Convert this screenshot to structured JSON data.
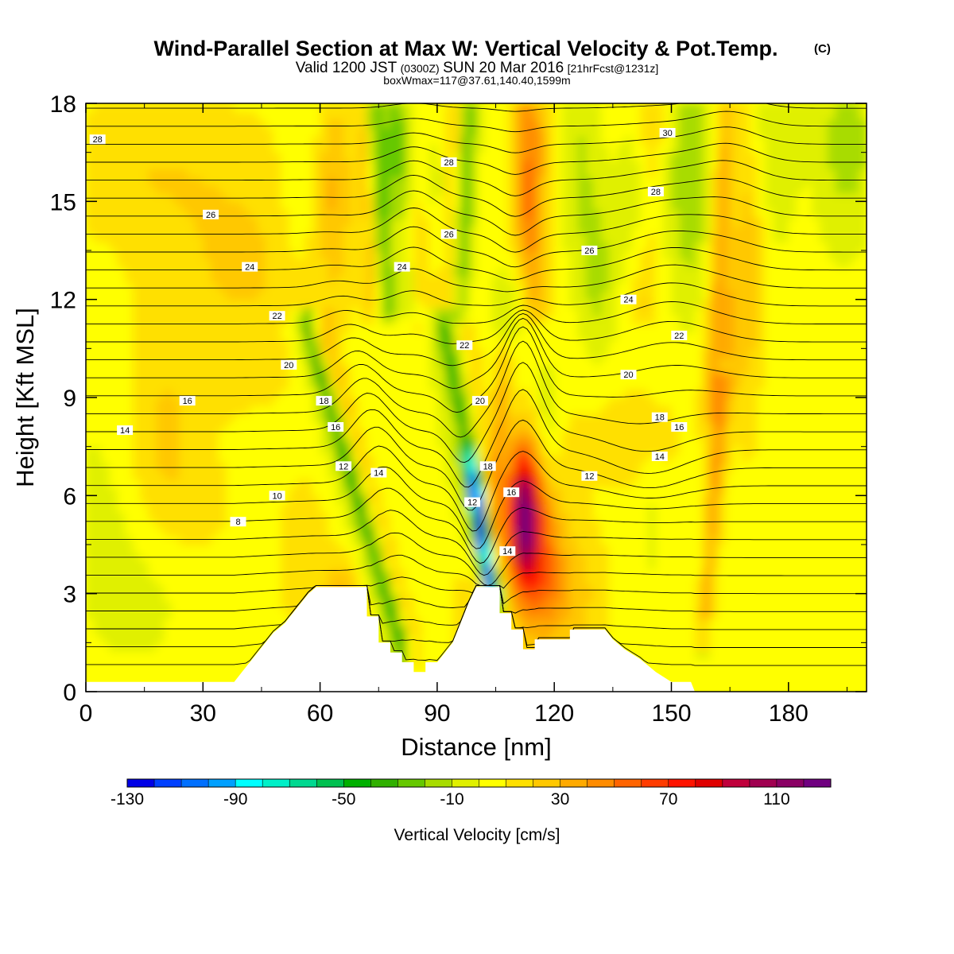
{
  "chart_data": {
    "type": "contour",
    "title": "Wind-Parallel Section at Max W: Vertical Velocity & Pot.Temp.",
    "title_mark": "(C)",
    "subtitle": {
      "valid": "Valid 1200 JST",
      "utc": "(0300Z)",
      "date": "SUN 20 Mar 2016",
      "fcst": "[21hrFcst@1231z]"
    },
    "info_line": "boxWmax=117@37.61,140.40,1599m",
    "xlabel": "Distance [nm]",
    "ylabel": "Height [Kft MSL]",
    "xlim": [
      0,
      200
    ],
    "ylim": [
      0,
      18
    ],
    "x_ticks": [
      0,
      30,
      60,
      90,
      120,
      150,
      180
    ],
    "y_ticks": [
      0,
      3,
      6,
      9,
      12,
      15,
      18
    ],
    "colorbar": {
      "title": "Vertical Velocity [cm/s]",
      "range": [
        -130,
        130
      ],
      "step": 10,
      "labels": [
        -130,
        -90,
        -50,
        -10,
        30,
        70,
        110
      ],
      "colors": [
        "#0000e6",
        "#0040ff",
        "#0070ff",
        "#00a0ff",
        "#00ffff",
        "#00f0c8",
        "#00d890",
        "#00c050",
        "#00b000",
        "#30b000",
        "#66c800",
        "#a8dc00",
        "#e0f000",
        "#ffff00",
        "#ffe000",
        "#ffc800",
        "#ffaa00",
        "#ff8c00",
        "#ff6400",
        "#ff3c00",
        "#ff1400",
        "#e00000",
        "#c0003c",
        "#a00050",
        "#8a0064",
        "#700080"
      ]
    },
    "terrain": [
      [
        0,
        0.3
      ],
      [
        38,
        0.3
      ],
      [
        40,
        0.6
      ],
      [
        42,
        0.9
      ],
      [
        44,
        1.2
      ],
      [
        46,
        1.5
      ],
      [
        48,
        1.8
      ],
      [
        51,
        2.1
      ],
      [
        53,
        2.4
      ],
      [
        55,
        2.7
      ],
      [
        57,
        3.0
      ],
      [
        59,
        3.2
      ],
      [
        72,
        3.2
      ],
      [
        72,
        2.3
      ],
      [
        75,
        2.3
      ],
      [
        75,
        1.5
      ],
      [
        78,
        1.5
      ],
      [
        78,
        1.2
      ],
      [
        81,
        1.2
      ],
      [
        81,
        0.9
      ],
      [
        84,
        0.9
      ],
      [
        84,
        0.6
      ],
      [
        87,
        0.6
      ],
      [
        87,
        0.9
      ],
      [
        90,
        0.9
      ],
      [
        92,
        1.2
      ],
      [
        94,
        1.5
      ],
      [
        96,
        2.1
      ],
      [
        98,
        2.7
      ],
      [
        100,
        3.2
      ],
      [
        106,
        3.2
      ],
      [
        106,
        2.4
      ],
      [
        109,
        2.4
      ],
      [
        109,
        1.9
      ],
      [
        112,
        1.9
      ],
      [
        112,
        1.3
      ],
      [
        115,
        1.3
      ],
      [
        115,
        1.6
      ],
      [
        124,
        1.6
      ],
      [
        124,
        1.9
      ],
      [
        133,
        1.9
      ],
      [
        135,
        1.6
      ],
      [
        138,
        1.3
      ],
      [
        142,
        1.0
      ],
      [
        146,
        0.6
      ],
      [
        150,
        0.3
      ],
      [
        155,
        0.3
      ],
      [
        156,
        0.0
      ]
    ],
    "w_field": [
      {
        "x": 0,
        "y": 9,
        "rx": 1000,
        "ry": 1000,
        "v": 5
      },
      {
        "x": 14,
        "y": 3,
        "rx": 14,
        "ry": 2.5,
        "v": -8
      },
      {
        "x": 4,
        "y": 6,
        "rx": 10,
        "ry": 3.5,
        "v": -7
      },
      {
        "x": 20,
        "y": 7.5,
        "rx": 10,
        "ry": 3,
        "v": 16
      },
      {
        "x": 40,
        "y": 13,
        "rx": 25,
        "ry": 4,
        "v": 16
      },
      {
        "x": 10,
        "y": 16,
        "rx": 25,
        "ry": 2,
        "v": 12
      },
      {
        "x": 30,
        "y": 5.5,
        "rx": 10,
        "ry": 1.5,
        "v": 6
      },
      {
        "x": 56,
        "y": 4,
        "rx": 7,
        "ry": 2.5,
        "v": 12
      },
      {
        "x": 66,
        "y": 2.6,
        "rx": 5,
        "ry": 1.4,
        "v": 28
      },
      {
        "x": 100,
        "y": 2.5,
        "rx": 6,
        "ry": 1.5,
        "v": 20
      },
      {
        "x": 138,
        "y": 7.8,
        "rx": 18,
        "ry": 1.8,
        "v": 10
      },
      {
        "x": 185,
        "y": 9.5,
        "rx": 15,
        "ry": 3,
        "v": -4
      },
      {
        "x": 188,
        "y": 2.6,
        "rx": 10,
        "ry": 2.5,
        "v": -4
      },
      {
        "x": 195,
        "y": 16.8,
        "rx": 8,
        "ry": 3,
        "v": -20
      },
      {
        "x": 176,
        "y": 16.8,
        "rx": 6,
        "ry": 3,
        "v": -15
      },
      {
        "x": 155,
        "y": 15.8,
        "rx": 6,
        "ry": 4,
        "v": -25
      },
      {
        "x": 142,
        "y": 15,
        "rx": 5,
        "ry": 2.5,
        "v": -20
      },
      {
        "x": 131,
        "y": 12.8,
        "rx": 5,
        "ry": 2.8,
        "v": -18
      },
      {
        "x": 126,
        "y": 16.5,
        "rx": 5,
        "ry": 3,
        "v": -15
      },
      {
        "x": 116,
        "y": 17,
        "rx": 5,
        "ry": 2,
        "v": 22
      },
      {
        "x": 113,
        "y": 14.5,
        "rx": 4,
        "ry": 1.6,
        "v": 18
      },
      {
        "x": 108,
        "y": 11.8,
        "rx": 5,
        "ry": 1.6,
        "v": -10
      },
      {
        "x": 90,
        "y": 15,
        "rx": 4,
        "ry": 2.5,
        "v": -12
      },
      {
        "x": 86,
        "y": 13,
        "rx": 4,
        "ry": 3,
        "v": 15
      },
      {
        "x": 64,
        "y": 15.5,
        "rx": 4,
        "ry": 3,
        "v": 22
      },
      {
        "x": 54,
        "y": 15.5,
        "rx": 4,
        "ry": 3,
        "v": -12
      },
      {
        "x": 80,
        "y": 17,
        "rx": 3,
        "ry": 2,
        "v": -20
      },
      {
        "x": 170,
        "y": 13,
        "rx": 4,
        "ry": 5,
        "v": 22
      },
      {
        "x": 165,
        "y": 11,
        "rx": 3,
        "ry": 2,
        "v": 20
      },
      {
        "x": 158,
        "y": 4,
        "rx": 4,
        "ry": 3,
        "v": -15
      },
      {
        "x": 145,
        "y": 5,
        "rx": 3,
        "ry": 2,
        "v": -8
      },
      {
        "x": 118,
        "y": 8,
        "rx": 3,
        "ry": 2,
        "v": -18
      },
      {
        "x": 112,
        "y": 5.3,
        "rx": 3.5,
        "ry": 1.8,
        "v": 75
      },
      {
        "x": 115,
        "y": 4.4,
        "rx": 6,
        "ry": 2.5,
        "v": 45
      },
      {
        "x": 122,
        "y": 3.0,
        "rx": 10,
        "ry": 2.2,
        "v": 25
      },
      {
        "x": 112,
        "y": 6.5,
        "rx": 6,
        "ry": 2,
        "v": 25
      }
    ],
    "w_bands": [
      {
        "x0": 57,
        "x1": 81,
        "y0": 11,
        "y1": 1.5,
        "w": 2.0,
        "v": -36
      },
      {
        "x0": 55,
        "x1": 79,
        "y0": 11,
        "y1": 1.5,
        "w": 4.5,
        "v": -12
      },
      {
        "x0": 61,
        "x1": 84,
        "y0": 11,
        "y1": 1.5,
        "w": 2.5,
        "v": 18
      },
      {
        "x0": 74,
        "x1": 77,
        "y0": 18,
        "y1": 12,
        "w": 2.5,
        "v": -38
      },
      {
        "x0": 71,
        "x1": 74,
        "y0": 18,
        "y1": 12,
        "w": 2.5,
        "v": 20
      },
      {
        "x0": 79,
        "x1": 83,
        "y0": 18,
        "y1": 12,
        "w": 2.5,
        "v": -15
      },
      {
        "x0": 92,
        "x1": 106,
        "y0": 11,
        "y1": 3.0,
        "w": 2.2,
        "v": -36
      },
      {
        "x0": 98,
        "x1": 104,
        "y0": 7,
        "y1": 3.0,
        "w": 1.8,
        "v": -60
      },
      {
        "x0": 100,
        "x1": 103,
        "y0": 6,
        "y1": 3.2,
        "w": 1.4,
        "v": -55
      },
      {
        "x0": 89,
        "x1": 102,
        "y0": 11,
        "y1": 3.0,
        "w": 4.5,
        "v": -10
      },
      {
        "x0": 97,
        "x1": 108,
        "y0": 12,
        "y1": 3,
        "w": 2.5,
        "v": 12
      },
      {
        "x0": 98,
        "x1": 96,
        "y0": 18,
        "y1": 12,
        "w": 2.5,
        "v": -35
      },
      {
        "x0": 95,
        "x1": 93,
        "y0": 18,
        "y1": 12,
        "w": 2.5,
        "v": 20
      },
      {
        "x0": 112,
        "x1": 115,
        "y0": 18,
        "y1": 12,
        "w": 3.5,
        "v": 26
      },
      {
        "x0": 164,
        "x1": 159,
        "y0": 18,
        "y1": 3,
        "w": 4.0,
        "v": 12
      },
      {
        "x0": 163,
        "x1": 158,
        "y0": 9,
        "y1": 2,
        "w": 2.0,
        "v": 28
      },
      {
        "x0": 164,
        "x1": 160,
        "y0": 18,
        "y1": 9,
        "w": 2.0,
        "v": 18
      },
      {
        "x0": 107,
        "x1": 104,
        "y0": 10,
        "y1": 4,
        "w": 2.0,
        "v": 25
      },
      {
        "x0": 145,
        "x1": 143,
        "y0": 18,
        "y1": 12,
        "w": 4.0,
        "v": 20
      }
    ],
    "theta_labels": [
      {
        "x": 3,
        "y": 16.9,
        "t": "28"
      },
      {
        "x": 93,
        "y": 16.2,
        "t": "28"
      },
      {
        "x": 149,
        "y": 17.1,
        "t": "30"
      },
      {
        "x": 146,
        "y": 15.3,
        "t": "28"
      },
      {
        "x": 32,
        "y": 14.6,
        "t": "26"
      },
      {
        "x": 93,
        "y": 14.0,
        "t": "26"
      },
      {
        "x": 129,
        "y": 13.5,
        "t": "26"
      },
      {
        "x": 42,
        "y": 13.0,
        "t": "24"
      },
      {
        "x": 81,
        "y": 13.0,
        "t": "24"
      },
      {
        "x": 139,
        "y": 12.0,
        "t": "24"
      },
      {
        "x": 49,
        "y": 11.5,
        "t": "22"
      },
      {
        "x": 97,
        "y": 10.6,
        "t": "22"
      },
      {
        "x": 152,
        "y": 10.9,
        "t": "22"
      },
      {
        "x": 52,
        "y": 10.0,
        "t": "20"
      },
      {
        "x": 101,
        "y": 8.9,
        "t": "20"
      },
      {
        "x": 139,
        "y": 9.7,
        "t": "20"
      },
      {
        "x": 26,
        "y": 8.9,
        "t": "16"
      },
      {
        "x": 61,
        "y": 8.9,
        "t": "18"
      },
      {
        "x": 147,
        "y": 8.4,
        "t": "18"
      },
      {
        "x": 64,
        "y": 8.1,
        "t": "16"
      },
      {
        "x": 152,
        "y": 8.1,
        "t": "16"
      },
      {
        "x": 10,
        "y": 8.0,
        "t": "14"
      },
      {
        "x": 75,
        "y": 6.7,
        "t": "14"
      },
      {
        "x": 147,
        "y": 7.2,
        "t": "14"
      },
      {
        "x": 66,
        "y": 6.9,
        "t": "12"
      },
      {
        "x": 103,
        "y": 6.9,
        "t": "18"
      },
      {
        "x": 109,
        "y": 6.1,
        "t": "16"
      },
      {
        "x": 99,
        "y": 5.8,
        "t": "12"
      },
      {
        "x": 108,
        "y": 4.3,
        "t": "14"
      },
      {
        "x": 129,
        "y": 6.6,
        "t": "12"
      },
      {
        "x": 49,
        "y": 6.0,
        "t": "10"
      },
      {
        "x": 39,
        "y": 5.2,
        "t": "8"
      }
    ]
  }
}
